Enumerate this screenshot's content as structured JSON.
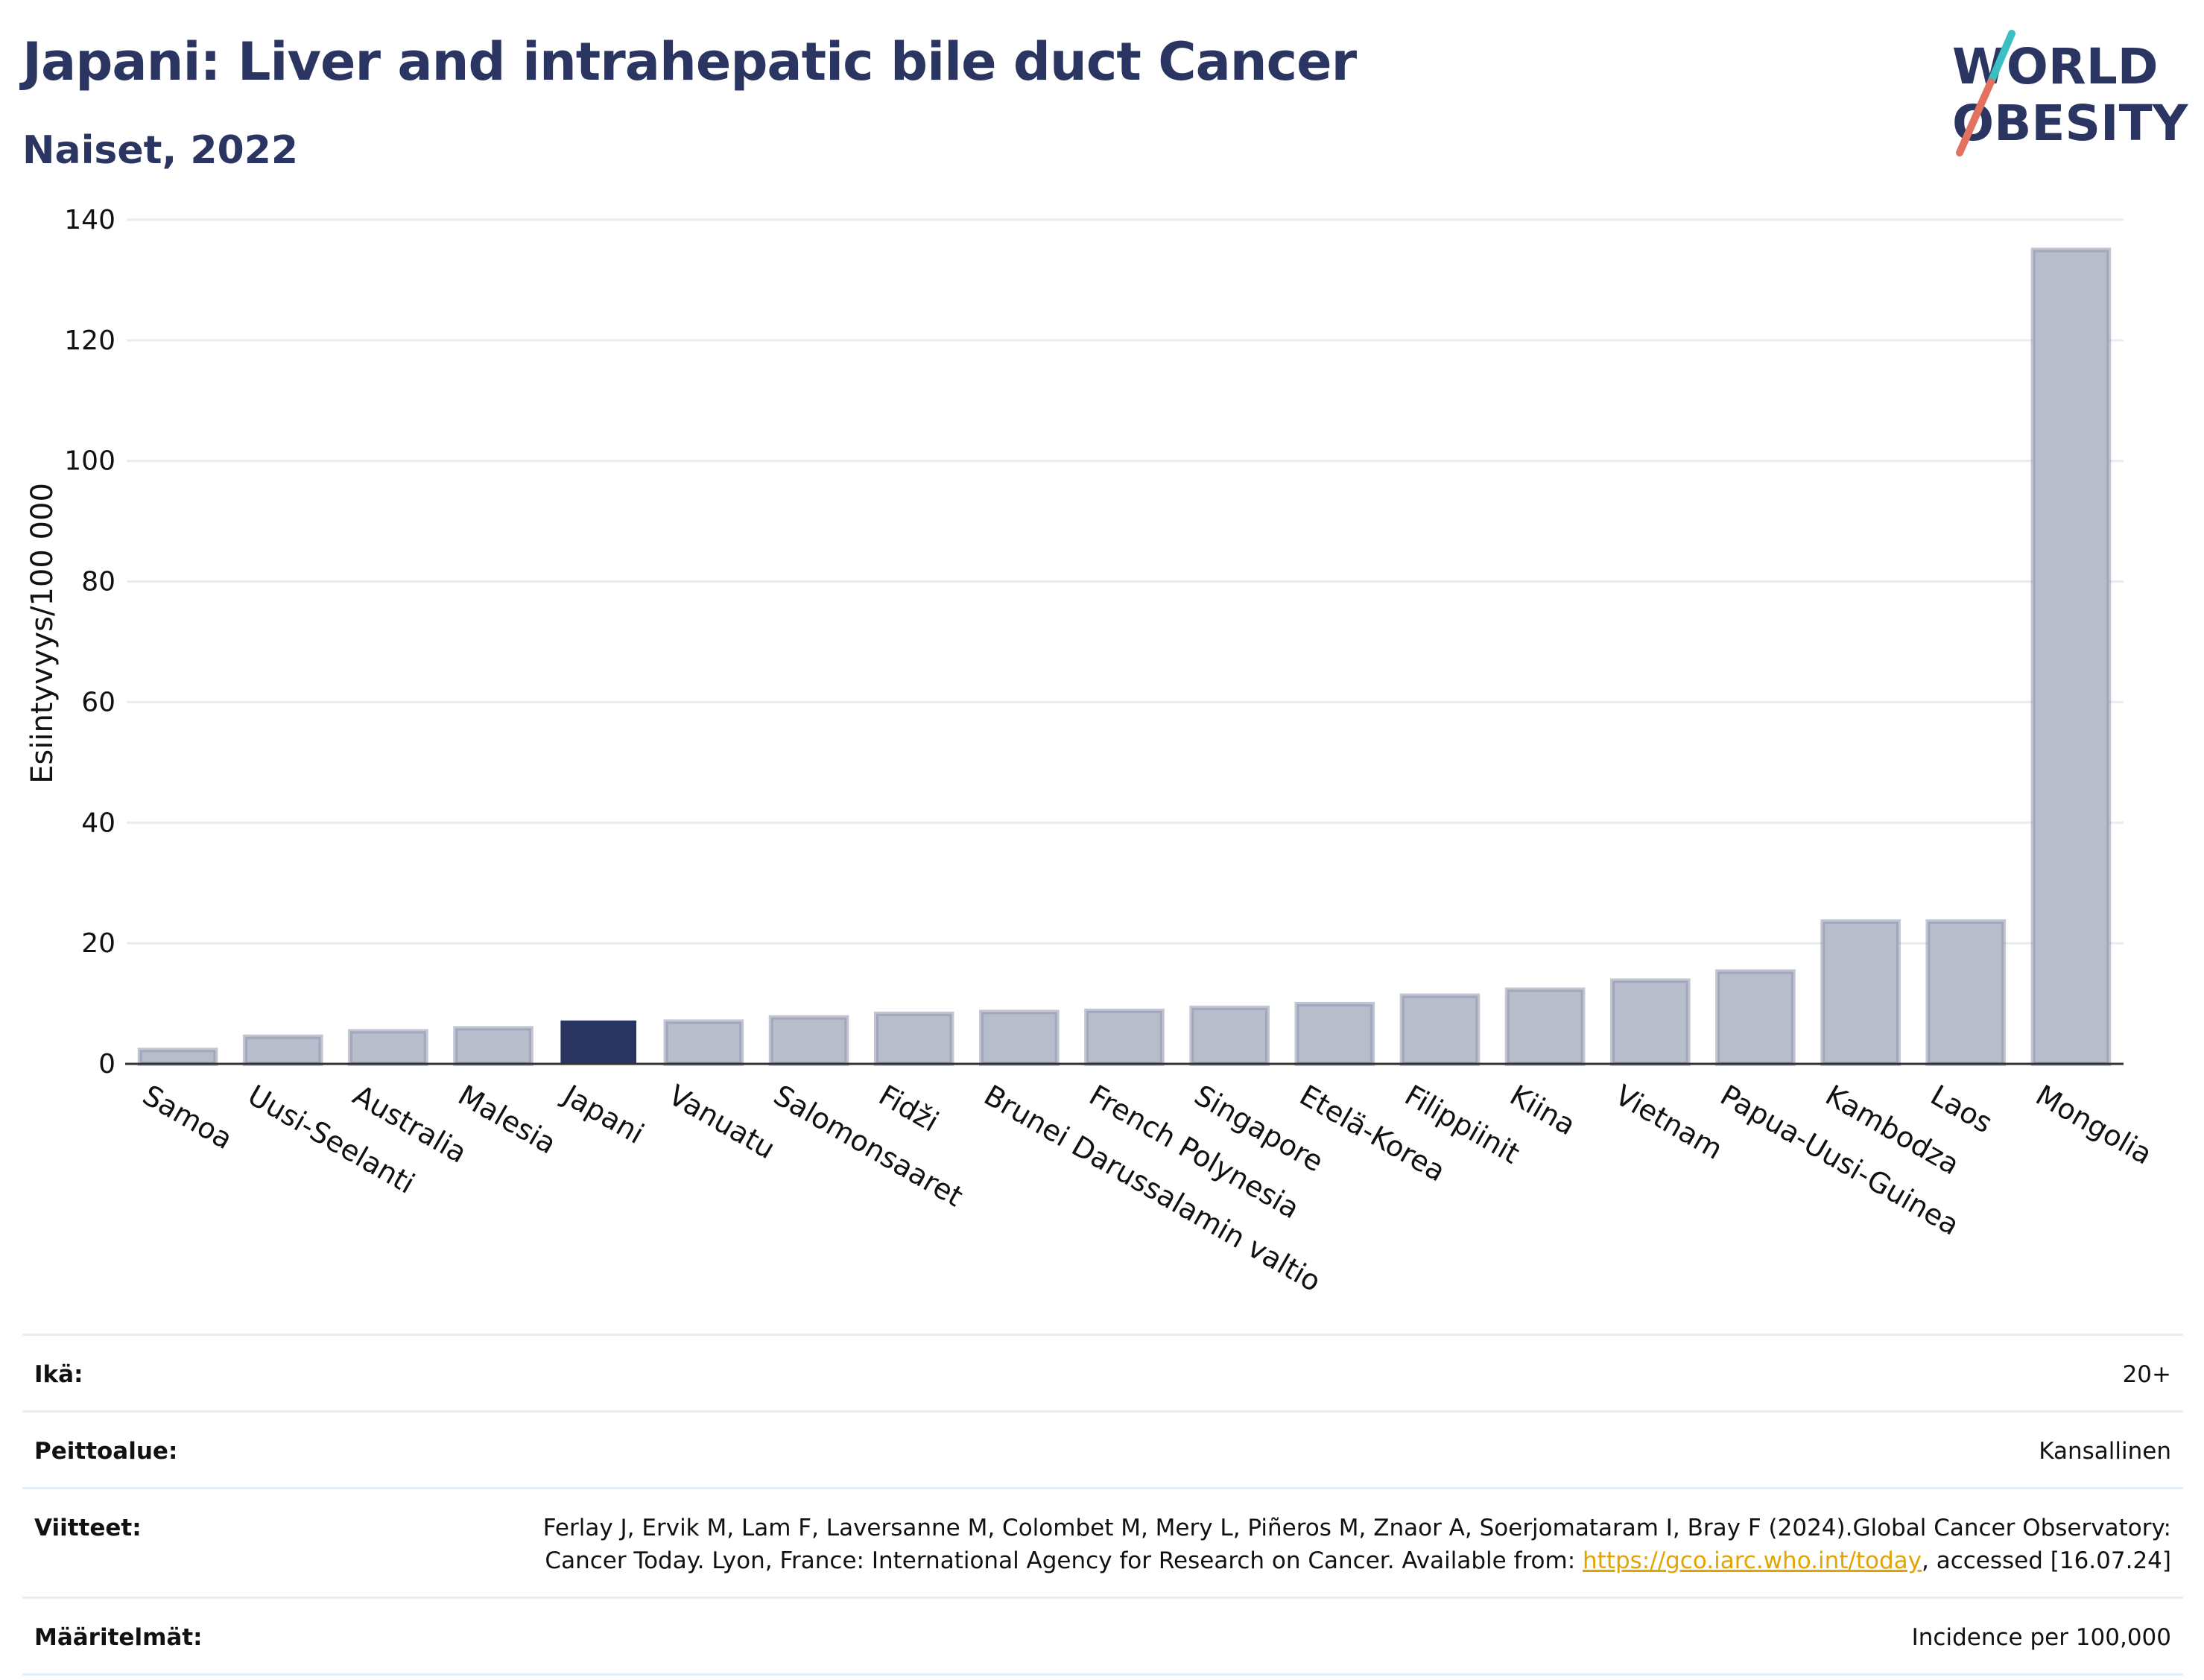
{
  "title": "Japani: Liver and intrahepatic bile duct Cancer",
  "subtitle": "Naiset, 2022",
  "logo": {
    "line1": "WORLD",
    "line2": "OBESITY"
  },
  "colors": {
    "bar": "#b8bdcc",
    "bar_border": "#8f96ad",
    "highlight": "#2b3561",
    "title": "#2b3561",
    "grid": "#e7ecf2"
  },
  "chart_data": {
    "type": "bar",
    "ylabel": "Esiintyvyys/100 000",
    "ylim": [
      0,
      140
    ],
    "yticks": [
      0,
      20,
      40,
      60,
      80,
      100,
      120,
      140
    ],
    "grid": true,
    "highlight": "Japani",
    "categories": [
      "Samoa",
      "Uusi-Seelanti",
      "Australia",
      "Malesia",
      "Japani",
      "Vanuatu",
      "Salomonsaaret",
      "Fidži",
      "Brunei Darussalamin valtio",
      "French Polynesia",
      "Singapore",
      "Etelä-Korea",
      "Filippiinit",
      "Kiina",
      "Vietnam",
      "Papua-Uusi-Guinea",
      "Kambodza",
      "Laos",
      "Mongolia"
    ],
    "values": [
      2.3,
      4.5,
      5.4,
      5.9,
      7.2,
      7.0,
      7.7,
      8.3,
      8.6,
      8.8,
      9.3,
      9.9,
      11.3,
      12.3,
      13.8,
      15.3,
      23.6,
      23.6,
      135.0
    ]
  },
  "info": {
    "age": {
      "label": "Ikä:",
      "value": "20+"
    },
    "coverage": {
      "label": "Peittoalue:",
      "value": "Kansallinen"
    },
    "references": {
      "label": "Viitteet:",
      "text1": "Ferlay J, Ervik M, Lam F, Laversanne M, Colombet M, Mery L, Piñeros M, Znaor A, Soerjomataram I, Bray F (2024).Global Cancer Observatory: Cancer Today. Lyon, France: International Agency for Research on Cancer. Available from: ",
      "link": "https://gco.iarc.who.int/today",
      "text2": ", accessed [16.07.24]"
    },
    "definitions": {
      "label": "Määritelmät:",
      "value": "Incidence per 100,000"
    }
  }
}
